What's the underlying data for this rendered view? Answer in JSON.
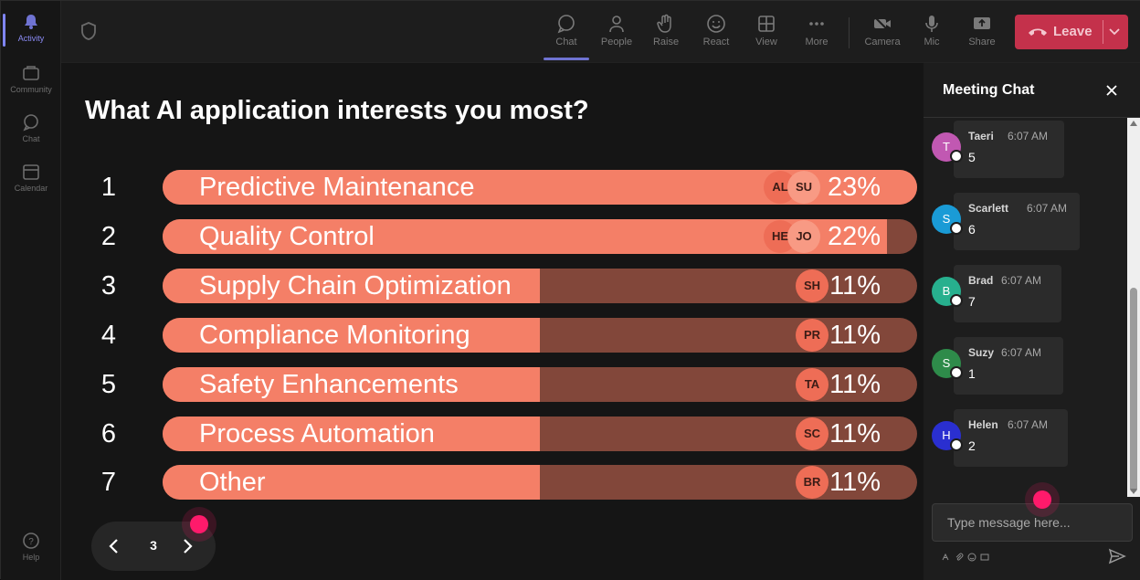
{
  "rail": {
    "items": [
      {
        "label": "Activity",
        "icon": "bell-icon",
        "active": true
      },
      {
        "label": "Community",
        "icon": "community-icon",
        "active": false
      },
      {
        "label": "Chat",
        "icon": "chat-icon",
        "active": false
      },
      {
        "label": "Calendar",
        "icon": "calendar-icon",
        "active": false
      }
    ],
    "help": {
      "label": "Help",
      "icon": "help-icon"
    }
  },
  "toolbar": {
    "chat": "Chat",
    "people": "People",
    "raise": "Raise",
    "react": "React",
    "view": "View",
    "more": "More",
    "camera": "Camera",
    "mic": "Mic",
    "share": "Share",
    "leave": "Leave",
    "leave_color": "#c4314b"
  },
  "poll": {
    "question": "What AI application interests you most?",
    "bar_fill_color": "#f47f67",
    "bar_track_color": "#82473a",
    "options": [
      {
        "num": "1",
        "label": "Predictive Maintenance",
        "percent": "23%",
        "fill": 1.0,
        "avatars": [
          "AL",
          "SU"
        ]
      },
      {
        "num": "2",
        "label": "Quality Control",
        "percent": "22%",
        "fill": 0.96,
        "avatars": [
          "HE",
          "JO"
        ]
      },
      {
        "num": "3",
        "label": "Supply Chain Optimization",
        "percent": "11%",
        "fill": 0.5,
        "avatars": [
          "SH"
        ]
      },
      {
        "num": "4",
        "label": "Compliance Monitoring",
        "percent": "11%",
        "fill": 0.5,
        "avatars": [
          "PR"
        ]
      },
      {
        "num": "5",
        "label": "Safety Enhancements",
        "percent": "11%",
        "fill": 0.5,
        "avatars": [
          "TA"
        ]
      },
      {
        "num": "6",
        "label": "Process Automation",
        "percent": "11%",
        "fill": 0.5,
        "avatars": [
          "SC"
        ]
      },
      {
        "num": "7",
        "label": "Other",
        "percent": "11%",
        "fill": 0.5,
        "avatars": [
          "BR"
        ]
      }
    ]
  },
  "pager": {
    "page": "3"
  },
  "chat": {
    "title": "Meeting Chat",
    "placeholder": "Type message here...",
    "messages": [
      {
        "initial": "T",
        "name": "Taeri",
        "time": "6:07 AM",
        "text": "5",
        "color": "#c158b2"
      },
      {
        "initial": "S",
        "name": "Scarlett",
        "time": "6:07 AM",
        "text": "6",
        "color": "#1a9bd6"
      },
      {
        "initial": "B",
        "name": "Brad",
        "time": "6:07 AM",
        "text": "7",
        "color": "#27b08e"
      },
      {
        "initial": "S",
        "name": "Suzy",
        "time": "6:07 AM",
        "text": "1",
        "color": "#2e8b4a"
      },
      {
        "initial": "H",
        "name": "Helen",
        "time": "6:07 AM",
        "text": "2",
        "color": "#2a2fd0"
      }
    ]
  }
}
